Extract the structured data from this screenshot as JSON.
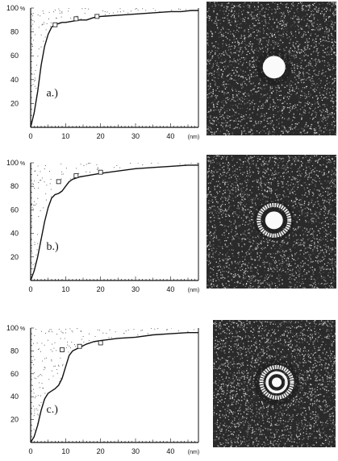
{
  "chart_data": [
    {
      "type": "line",
      "panel_label": "a.)",
      "xlabel": "(nm)",
      "ylabel": "%",
      "xlim": [
        0,
        48
      ],
      "ylim": [
        0,
        100
      ],
      "x_ticks": [
        "0",
        "10",
        "20",
        "30",
        "40"
      ],
      "y_ticks": [
        "100",
        "80",
        "60",
        "40",
        "20"
      ],
      "series": [
        {
          "x": [
            0,
            1,
            2,
            3,
            4,
            5,
            6,
            7,
            8,
            9,
            10,
            12,
            14,
            16,
            18,
            20,
            25,
            30,
            35,
            40,
            43,
            46,
            48
          ],
          "y": [
            0,
            12,
            30,
            52,
            68,
            78,
            84,
            86,
            87,
            88,
            88,
            89,
            90,
            90,
            92,
            93,
            94,
            95,
            96,
            97,
            97,
            98,
            98
          ]
        }
      ],
      "markers": [
        [
          7,
          86
        ],
        [
          13,
          91
        ],
        [
          19,
          93
        ]
      ],
      "image": {
        "rings": []
      }
    },
    {
      "type": "line",
      "panel_label": "b.)",
      "xlabel": "(nm)",
      "ylabel": "%",
      "xlim": [
        0,
        48
      ],
      "ylim": [
        0,
        100
      ],
      "x_ticks": [
        "0",
        "10",
        "20",
        "30",
        "40"
      ],
      "y_ticks": [
        "100",
        "80",
        "60",
        "40",
        "20"
      ],
      "series": [
        {
          "x": [
            0,
            1,
            2,
            3,
            4,
            5,
            6,
            7,
            8,
            9,
            10,
            11,
            12,
            14,
            16,
            18,
            20,
            25,
            30,
            35,
            40,
            45,
            48
          ],
          "y": [
            0,
            8,
            20,
            35,
            50,
            62,
            70,
            73,
            74,
            76,
            80,
            84,
            86,
            88,
            89,
            90,
            91,
            93,
            95,
            96,
            97,
            98,
            98
          ]
        }
      ],
      "markers": [
        [
          8,
          84
        ],
        [
          13,
          89
        ],
        [
          20,
          92
        ]
      ],
      "image": {
        "rings": [
          1
        ]
      }
    },
    {
      "type": "line",
      "panel_label": "c.)",
      "xlabel": "(nm)",
      "ylabel": "%",
      "xlim": [
        0,
        48
      ],
      "ylim": [
        0,
        100
      ],
      "x_ticks": [
        "0",
        "10",
        "20",
        "30",
        "40"
      ],
      "y_ticks": [
        "100",
        "80",
        "60",
        "40",
        "20"
      ],
      "series": [
        {
          "x": [
            0,
            1,
            2,
            3,
            4,
            5,
            6,
            7,
            8,
            9,
            10,
            11,
            12,
            14,
            16,
            18,
            20,
            25,
            30,
            35,
            40,
            45,
            48
          ],
          "y": [
            0,
            5,
            15,
            28,
            38,
            43,
            45,
            47,
            50,
            56,
            66,
            76,
            80,
            83,
            86,
            88,
            89,
            91,
            92,
            94,
            95,
            96,
            96
          ]
        }
      ],
      "markers": [
        [
          9,
          81
        ],
        [
          14,
          84
        ],
        [
          20,
          87
        ]
      ],
      "image": {
        "rings": [
          1,
          2
        ]
      }
    }
  ]
}
